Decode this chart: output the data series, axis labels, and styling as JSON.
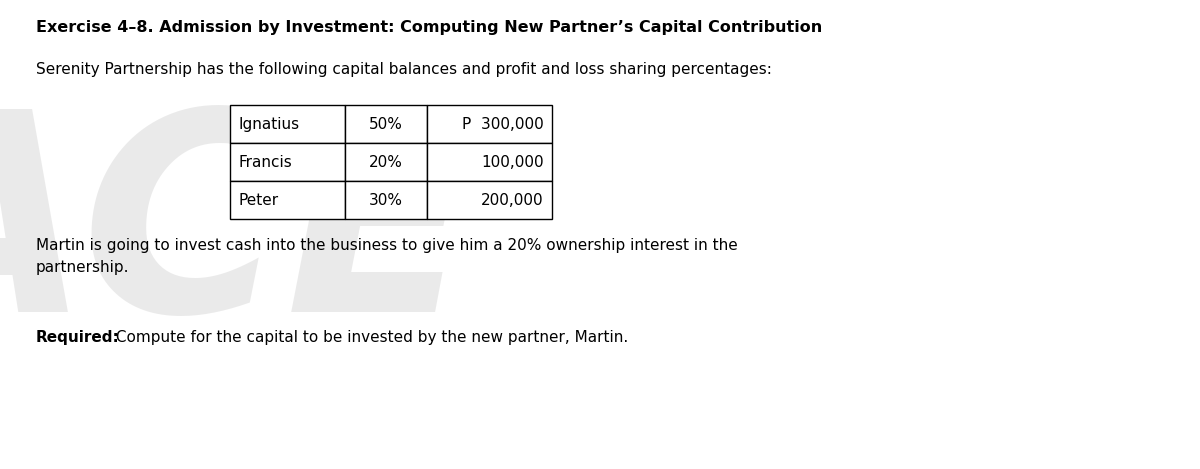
{
  "title": "Exercise 4–8. Admission by Investment: Computing New Partner’s Capital Contribution",
  "subtitle": "Serenity Partnership has the following capital balances and profit and loss sharing percentages:",
  "table": {
    "rows": [
      [
        "Ignatius",
        "50%",
        "P  300,000"
      ],
      [
        "Francis",
        "20%",
        "100,000"
      ],
      [
        "Peter",
        "30%",
        "200,000"
      ]
    ]
  },
  "paragraph_line1": "Martin is going to invest cash into the business to give him a 20% ownership interest in the",
  "paragraph_line2": "partnership.",
  "required_label": "Required:",
  "required_text": " Compute for the capital to be invested by the new partner, Martin.",
  "bg_color": "#ffffff",
  "text_color": "#000000",
  "font_family": "DejaVu Sans",
  "title_fontsize": 11.5,
  "body_fontsize": 11.0,
  "table_fontsize": 11.0,
  "watermark_text": "ACE",
  "watermark_color": "#cccccc",
  "fig_width": 12.0,
  "fig_height": 4.69,
  "dpi": 100
}
